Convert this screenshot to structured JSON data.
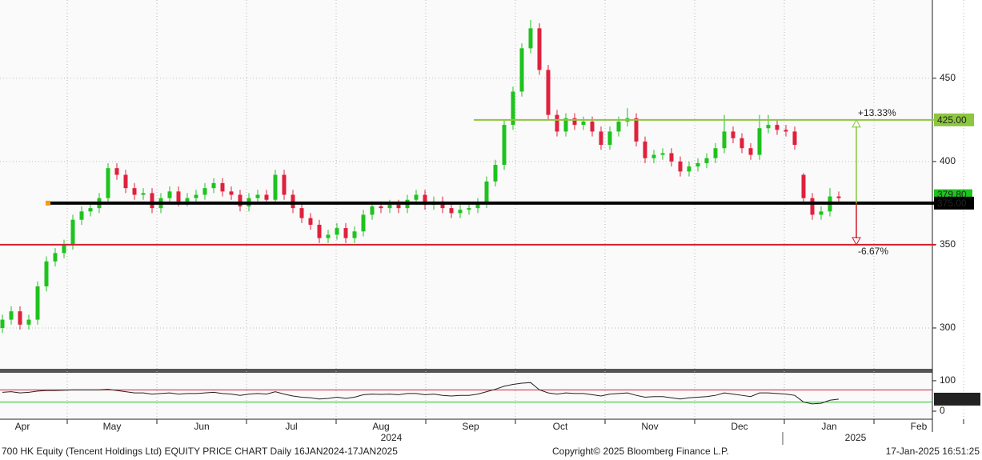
{
  "chart_data": {
    "type": "candlestick",
    "title": "700 HK Equity (Tencent Holdings Ltd) EQUITY PRICE CHART  Daily 16JAN2024-17JAN2025",
    "copyright": "Copyright© 2025 Bloomberg Finance L.P.",
    "timestamp": "17-Jan-2025 16:51:25",
    "months": [
      "Apr",
      "May",
      "Jun",
      "Jul",
      "Aug",
      "Sep",
      "Oct",
      "Nov",
      "Dec",
      "Jan",
      "Feb"
    ],
    "years": [
      "2024",
      "2025"
    ],
    "ylim": [
      275,
      497
    ],
    "yticks": [
      300,
      350,
      400,
      450
    ],
    "up_color": "#1ec31e",
    "down_color": "#e0203c",
    "candles": [
      [
        300,
        308,
        297,
        305
      ],
      [
        305,
        313,
        302,
        310
      ],
      [
        310,
        313,
        299,
        302
      ],
      [
        302,
        308,
        299,
        305
      ],
      [
        305,
        328,
        302,
        325
      ],
      [
        325,
        343,
        322,
        340
      ],
      [
        340,
        348,
        337,
        345
      ],
      [
        345,
        353,
        342,
        350
      ],
      [
        350,
        368,
        347,
        365
      ],
      [
        365,
        373,
        362,
        370
      ],
      [
        370,
        375,
        367,
        372
      ],
      [
        372,
        381,
        369,
        378
      ],
      [
        378,
        399,
        375,
        396
      ],
      [
        396,
        399,
        389,
        392
      ],
      [
        392,
        395,
        381,
        384
      ],
      [
        384,
        387,
        377,
        380
      ],
      [
        380,
        384,
        377,
        381
      ],
      [
        381,
        384,
        369,
        372
      ],
      [
        372,
        381,
        369,
        378
      ],
      [
        378,
        385,
        375,
        382
      ],
      [
        382,
        385,
        373,
        376
      ],
      [
        376,
        381,
        373,
        378
      ],
      [
        378,
        383,
        375,
        380
      ],
      [
        380,
        387,
        377,
        384
      ],
      [
        384,
        390,
        381,
        387
      ],
      [
        387,
        390,
        379,
        382
      ],
      [
        382,
        385,
        377,
        380
      ],
      [
        380,
        383,
        370,
        373
      ],
      [
        373,
        381,
        370,
        378
      ],
      [
        378,
        383,
        375,
        380
      ],
      [
        380,
        383,
        374,
        377
      ],
      [
        377,
        395,
        374,
        392
      ],
      [
        392,
        395,
        377,
        380
      ],
      [
        380,
        383,
        369,
        372
      ],
      [
        372,
        375,
        363,
        366
      ],
      [
        366,
        369,
        359,
        362
      ],
      [
        362,
        365,
        351,
        354
      ],
      [
        354,
        359,
        351,
        356
      ],
      [
        356,
        363,
        353,
        360
      ],
      [
        360,
        363,
        351,
        354
      ],
      [
        354,
        361,
        351,
        358
      ],
      [
        358,
        371,
        355,
        368
      ],
      [
        368,
        376,
        365,
        373
      ],
      [
        373,
        376,
        369,
        372
      ],
      [
        372,
        377,
        369,
        374
      ],
      [
        374,
        377,
        369,
        372
      ],
      [
        372,
        380,
        369,
        377
      ],
      [
        377,
        383,
        374,
        380
      ],
      [
        380,
        383,
        371,
        374
      ],
      [
        374,
        379,
        371,
        376
      ],
      [
        376,
        379,
        369,
        372
      ],
      [
        372,
        375,
        366,
        369
      ],
      [
        369,
        374,
        366,
        371
      ],
      [
        371,
        375,
        368,
        372
      ],
      [
        372,
        378,
        369,
        375
      ],
      [
        375,
        391,
        372,
        388
      ],
      [
        388,
        401,
        385,
        398
      ],
      [
        398,
        425,
        395,
        422
      ],
      [
        422,
        445,
        419,
        442
      ],
      [
        442,
        471,
        439,
        468
      ],
      [
        468,
        485,
        465,
        480
      ],
      [
        480,
        483,
        452,
        455
      ],
      [
        455,
        458,
        425,
        428
      ],
      [
        428,
        431,
        415,
        418
      ],
      [
        418,
        429,
        415,
        426
      ],
      [
        426,
        429,
        419,
        422
      ],
      [
        422,
        427,
        419,
        424
      ],
      [
        424,
        427,
        415,
        418
      ],
      [
        418,
        421,
        407,
        410
      ],
      [
        410,
        421,
        407,
        418
      ],
      [
        418,
        427,
        415,
        424
      ],
      [
        424,
        432,
        421,
        426
      ],
      [
        426,
        429,
        409,
        412
      ],
      [
        412,
        415,
        399,
        402
      ],
      [
        402,
        407,
        399,
        404
      ],
      [
        404,
        408,
        401,
        405
      ],
      [
        405,
        408,
        397,
        400
      ],
      [
        400,
        403,
        391,
        394
      ],
      [
        394,
        400,
        391,
        397
      ],
      [
        397,
        402,
        394,
        399
      ],
      [
        399,
        405,
        396,
        402
      ],
      [
        402,
        411,
        399,
        408
      ],
      [
        408,
        428,
        405,
        418
      ],
      [
        418,
        421,
        411,
        414
      ],
      [
        414,
        417,
        405,
        408
      ],
      [
        408,
        411,
        401,
        404
      ],
      [
        404,
        428,
        401,
        420
      ],
      [
        420,
        428,
        417,
        422
      ],
      [
        422,
        425,
        416,
        419
      ],
      [
        419,
        422,
        415,
        418
      ],
      [
        418,
        421,
        407,
        410
      ],
      [
        392,
        393,
        375,
        378
      ],
      [
        378,
        381,
        365,
        368
      ],
      [
        368,
        373,
        365,
        370
      ],
      [
        370,
        384,
        367,
        379
      ],
      [
        379,
        382,
        375,
        378
      ]
    ],
    "levels": [
      {
        "value": 425,
        "label": "425.00",
        "color": "#8dc63f"
      },
      {
        "value": 375,
        "label": "375.00",
        "color": "#000000"
      },
      {
        "value": 350,
        "label": "",
        "color": "#d01c2c"
      }
    ],
    "annotations": [
      "+13.33%",
      "-6.67%"
    ],
    "last_price_label": "379.80",
    "rsi": {
      "ylim": [
        -21,
        126
      ],
      "yticks": [
        0,
        100
      ],
      "lines": [
        70,
        30
      ],
      "color": "#222222",
      "last_label": "39.5589",
      "values": [
        62,
        64,
        60,
        62,
        66,
        68,
        68,
        69,
        70,
        70,
        70,
        70,
        72,
        68,
        64,
        60,
        60,
        56,
        58,
        60,
        56,
        58,
        58,
        60,
        62,
        58,
        56,
        52,
        56,
        58,
        56,
        64,
        56,
        50,
        46,
        44,
        40,
        42,
        46,
        42,
        46,
        54,
        56,
        55,
        56,
        54,
        58,
        58,
        54,
        56,
        52,
        50,
        52,
        52,
        56,
        64,
        72,
        82,
        88,
        92,
        94,
        70,
        60,
        56,
        60,
        58,
        58,
        54,
        50,
        56,
        58,
        60,
        52,
        46,
        48,
        48,
        44,
        40,
        44,
        46,
        48,
        52,
        60,
        56,
        52,
        48,
        60,
        60,
        58,
        56,
        52,
        30,
        24,
        26,
        36,
        39.5589
      ]
    }
  }
}
